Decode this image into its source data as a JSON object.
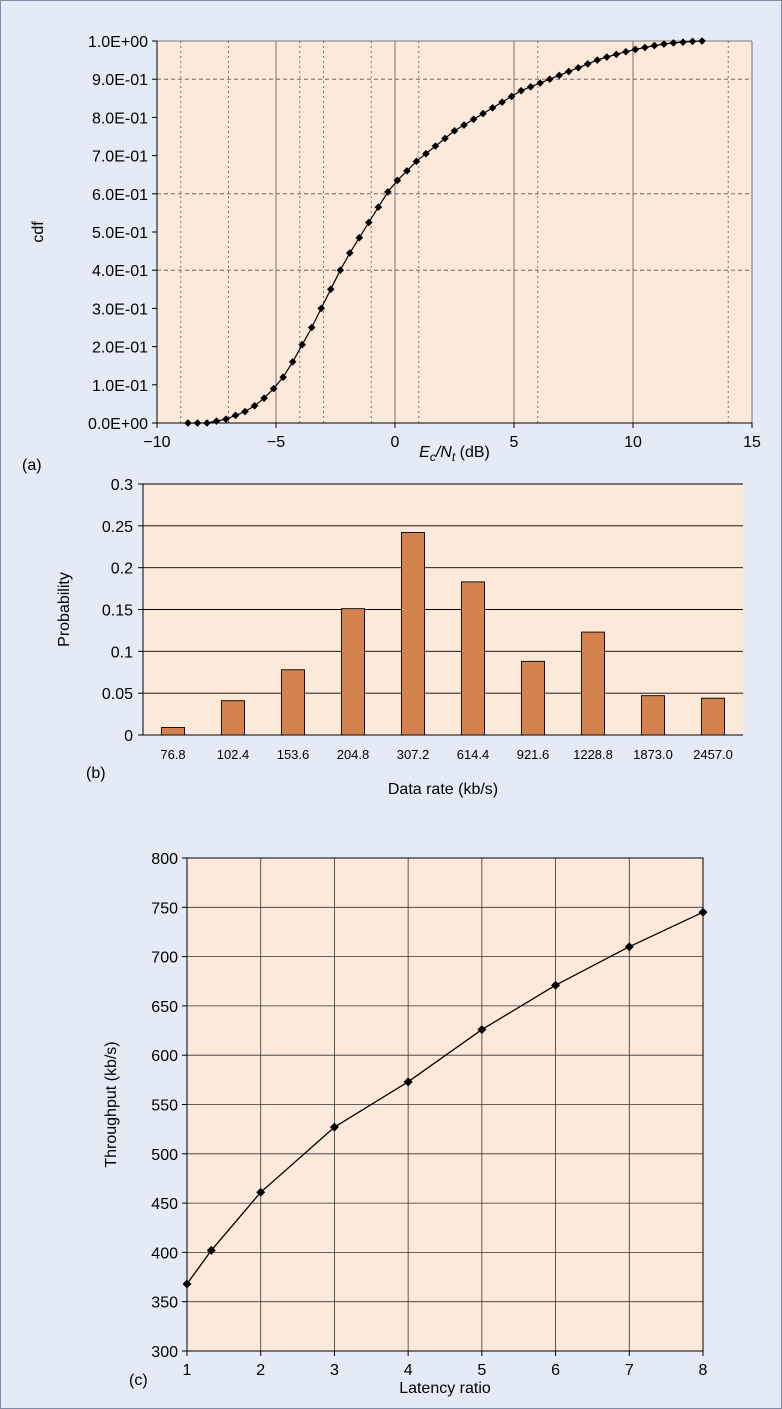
{
  "chart_data": [
    {
      "panel": "(a)",
      "type": "line",
      "xlabel_prefix": "E",
      "xlabel_sub1": "c",
      "xlabel_mid": "/N",
      "xlabel_sub2": "t",
      "xlabel_suffix": " (dB)",
      "ylabel": "cdf",
      "xlim": [
        -10,
        15
      ],
      "ylim": [
        0,
        1
      ],
      "x_ticks": [
        "−10",
        "−5",
        "0",
        "5",
        "10",
        "15"
      ],
      "y_ticks": [
        "0.0E+00",
        "1.0E-01",
        "2.0E-01",
        "3.0E-01",
        "4.0E-01",
        "5.0E-01",
        "6.0E-01",
        "7.0E-01",
        "8.0E-01",
        "9.0E-01",
        "1.0E+00"
      ],
      "x_solid_grid": [
        -5,
        0,
        5,
        10
      ],
      "x_dotted_grid": [
        -9,
        -7,
        -4,
        -3,
        -1,
        1,
        6,
        14
      ],
      "y_dashed_grid": [
        0.4,
        0.6,
        0.9
      ],
      "series": [
        {
          "x": [
            -8.7,
            -8.3,
            -7.9,
            -7.5,
            -7.1,
            -6.7,
            -6.3,
            -5.9,
            -5.5,
            -5.1,
            -4.7,
            -4.3,
            -3.9,
            -3.5,
            -3.1,
            -2.7,
            -2.3,
            -1.9,
            -1.5,
            -1.1,
            -0.7,
            -0.3,
            0.1,
            0.5,
            0.9,
            1.3,
            1.7,
            2.1,
            2.5,
            2.9,
            3.3,
            3.7,
            4.1,
            4.5,
            4.9,
            5.3,
            5.7,
            6.1,
            6.5,
            6.9,
            7.3,
            7.7,
            8.1,
            8.5,
            8.9,
            9.3,
            9.7,
            10.1,
            10.5,
            10.9,
            11.3,
            11.7,
            12.1,
            12.5,
            12.9
          ],
          "y": [
            0.0,
            0.0,
            0.0,
            0.005,
            0.01,
            0.02,
            0.03,
            0.045,
            0.065,
            0.09,
            0.12,
            0.16,
            0.205,
            0.25,
            0.3,
            0.35,
            0.4,
            0.445,
            0.485,
            0.525,
            0.565,
            0.605,
            0.635,
            0.66,
            0.685,
            0.705,
            0.725,
            0.745,
            0.765,
            0.78,
            0.795,
            0.81,
            0.825,
            0.84,
            0.855,
            0.87,
            0.88,
            0.89,
            0.9,
            0.91,
            0.92,
            0.93,
            0.94,
            0.95,
            0.958,
            0.965,
            0.972,
            0.978,
            0.983,
            0.988,
            0.992,
            0.995,
            0.997,
            0.999,
            1.0
          ]
        }
      ]
    },
    {
      "panel": "(b)",
      "type": "bar",
      "xlabel": "Data rate (kb/s)",
      "ylabel": "Probability",
      "ylim": [
        0,
        0.3
      ],
      "y_ticks": [
        "0",
        "0.05",
        "0.1",
        "0.15",
        "0.2",
        "0.25",
        "0.3"
      ],
      "categories": [
        "76.8",
        "102.4",
        "153.6",
        "204.8",
        "307.2",
        "614.4",
        "921.6",
        "1228.8",
        "1873.0",
        "2457.0"
      ],
      "values": [
        0.009,
        0.041,
        0.078,
        0.151,
        0.242,
        0.183,
        0.088,
        0.123,
        0.047,
        0.044
      ],
      "color": "#d4834f"
    },
    {
      "panel": "(c)",
      "type": "line",
      "xlabel": "Latency ratio",
      "ylabel": "Throughput (kb/s)",
      "xlim": [
        1,
        8
      ],
      "ylim": [
        300,
        800
      ],
      "x_ticks": [
        "1",
        "2",
        "3",
        "4",
        "5",
        "6",
        "7",
        "8"
      ],
      "y_ticks": [
        "300",
        "350",
        "400",
        "450",
        "500",
        "550",
        "600",
        "650",
        "700",
        "750",
        "800"
      ],
      "series": [
        {
          "x": [
            1,
            1.33,
            2,
            3,
            4,
            5,
            6,
            7,
            8
          ],
          "y": [
            368,
            402,
            461,
            527,
            573,
            626,
            671,
            710,
            745
          ]
        }
      ]
    }
  ],
  "colors": {
    "plot_background": "#fde9d9",
    "figure_background": "#e4eaf6",
    "bar": "#d4834f"
  }
}
